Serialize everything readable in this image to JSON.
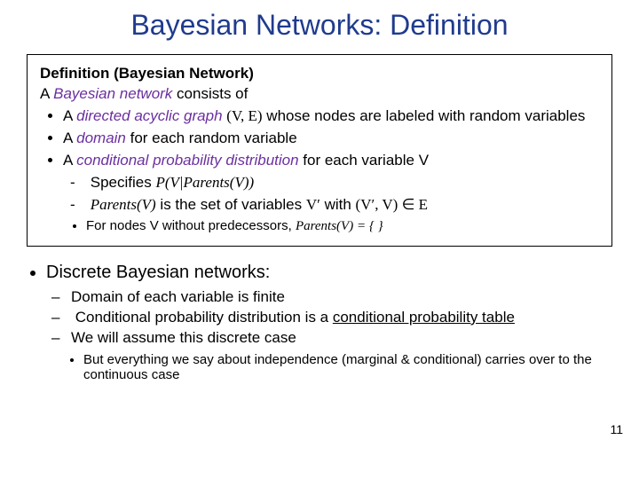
{
  "title": "Bayesian Networks: Definition",
  "colors": {
    "title": "#1f3b8e",
    "term": "#6b2fa0",
    "text": "#000000",
    "background": "#ffffff",
    "box_border": "#000000"
  },
  "defbox": {
    "heading": "Definition (Bayesian Network)",
    "lead_a": "A ",
    "lead_term": "Bayesian network",
    "lead_b": " consists of",
    "items": [
      {
        "pre": "A ",
        "term": "directed acyclic graph",
        "post_a": " ",
        "math": "(V, E)",
        "post_b": " whose nodes are labeled with random variables"
      },
      {
        "pre": "A ",
        "term": "domain",
        "post_b": " for each random variable"
      },
      {
        "pre": "A ",
        "term": "conditional probability distribution",
        "post_b": " for each variable V",
        "dash": [
          {
            "pre": "Specifies ",
            "math": "P(V|Parents(V))"
          },
          {
            "math": "Parents(V)",
            "mid": " is the set of variables ",
            "math2": "V′",
            "mid2": " with ",
            "math3": "(V′, V) ∈ E"
          }
        ],
        "inner": {
          "pre": "For nodes V without predecessors, ",
          "math": "Parents(V) = { }"
        }
      }
    ]
  },
  "body": {
    "top": "Discrete Bayesian networks:",
    "sub1": [
      "Domain of each variable is finite",
      {
        "a": "Conditional probability distribution is a ",
        "u": "conditional probability table"
      },
      "We will assume this discrete case"
    ],
    "sub2": "But everything we say about independence (marginal & conditional) carries over to the continuous case"
  },
  "page_number": "11"
}
